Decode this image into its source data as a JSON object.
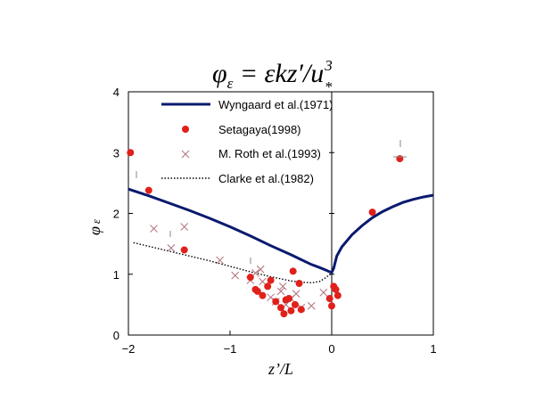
{
  "chart_data": {
    "type": "scatter",
    "title": {
      "phi": "φ",
      "sub": "ε",
      "eq": " = εkz′",
      "slash": "/",
      "u": "u",
      "sup": "3",
      "usub": "*"
    },
    "xlabel": "z’/L",
    "ylabel": {
      "main": "φ",
      "sub": "ε"
    },
    "xlim": [
      -2,
      1
    ],
    "ylim": [
      0,
      4
    ],
    "xticks": [
      -2,
      -1,
      0,
      1
    ],
    "yticks": [
      0,
      1,
      2,
      3,
      4
    ],
    "xtick_labels": [
      "−2",
      "−1",
      "0",
      "1"
    ],
    "ytick_labels": [
      "0",
      "1",
      "2",
      "3",
      "4"
    ],
    "grid": false,
    "legend_position": "top-right",
    "colors": {
      "wyngaard": "#0a1a6e",
      "setagaya": "#e0201b",
      "roth": "#b0707a",
      "clarke": "#000000"
    },
    "series": [
      {
        "name": "Wyngaard et al.(1971)",
        "kind": "line",
        "x": [
          -2.0,
          -1.8,
          -1.6,
          -1.4,
          -1.2,
          -1.0,
          -0.8,
          -0.6,
          -0.4,
          -0.3,
          -0.2,
          -0.12,
          -0.06,
          -0.02,
          0.0,
          0.02,
          0.05,
          0.1,
          0.2,
          0.3,
          0.4,
          0.5,
          0.6,
          0.7,
          0.8,
          0.9,
          1.0
        ],
        "y": [
          2.4,
          2.29,
          2.17,
          2.05,
          1.92,
          1.78,
          1.63,
          1.47,
          1.32,
          1.24,
          1.16,
          1.11,
          1.07,
          1.04,
          1.03,
          1.1,
          1.3,
          1.45,
          1.65,
          1.8,
          1.93,
          2.03,
          2.11,
          2.18,
          2.23,
          2.27,
          2.3
        ]
      },
      {
        "name": "Setagaya(1998)",
        "kind": "points",
        "x": [
          -1.98,
          -1.8,
          -1.45,
          -0.8,
          -0.75,
          -0.73,
          -0.68,
          -0.63,
          -0.6,
          -0.55,
          -0.5,
          -0.47,
          -0.45,
          -0.42,
          -0.4,
          -0.38,
          -0.36,
          -0.32,
          -0.3,
          -0.02,
          0.0,
          0.02,
          0.04,
          0.06,
          0.4,
          0.67
        ],
        "y": [
          3.0,
          2.38,
          1.4,
          0.95,
          0.75,
          0.72,
          0.65,
          0.8,
          0.9,
          0.55,
          0.45,
          0.35,
          0.58,
          0.6,
          0.4,
          1.05,
          0.5,
          0.85,
          0.42,
          0.6,
          0.48,
          0.8,
          0.75,
          0.65,
          2.02,
          2.9
        ]
      },
      {
        "name": "M. Roth et al.(1993)",
        "kind": "markers",
        "x": [
          -1.75,
          -1.58,
          -1.45,
          -1.1,
          -0.95,
          -0.8,
          -0.75,
          -0.7,
          -0.68,
          -0.6,
          -0.55,
          -0.5,
          -0.48,
          -0.45,
          -0.4,
          -0.35,
          -0.3,
          -0.2,
          -0.08
        ],
        "y": [
          1.75,
          1.43,
          1.78,
          1.23,
          0.98,
          0.9,
          1.02,
          1.08,
          0.88,
          0.62,
          0.55,
          0.72,
          0.8,
          0.5,
          0.6,
          0.68,
          0.45,
          0.48,
          0.7
        ]
      },
      {
        "name": "Clarke et al.(1982)",
        "kind": "dotted-line",
        "x": [
          -1.95,
          -1.8,
          -1.6,
          -1.4,
          -1.2,
          -1.0,
          -0.8,
          -0.6,
          -0.4,
          -0.3,
          -0.2,
          -0.12,
          -0.07,
          -0.03,
          0.0
        ],
        "y": [
          1.52,
          1.46,
          1.38,
          1.3,
          1.22,
          1.13,
          1.04,
          0.96,
          0.89,
          0.87,
          0.86,
          0.88,
          0.93,
          0.98,
          1.02
        ]
      }
    ]
  }
}
